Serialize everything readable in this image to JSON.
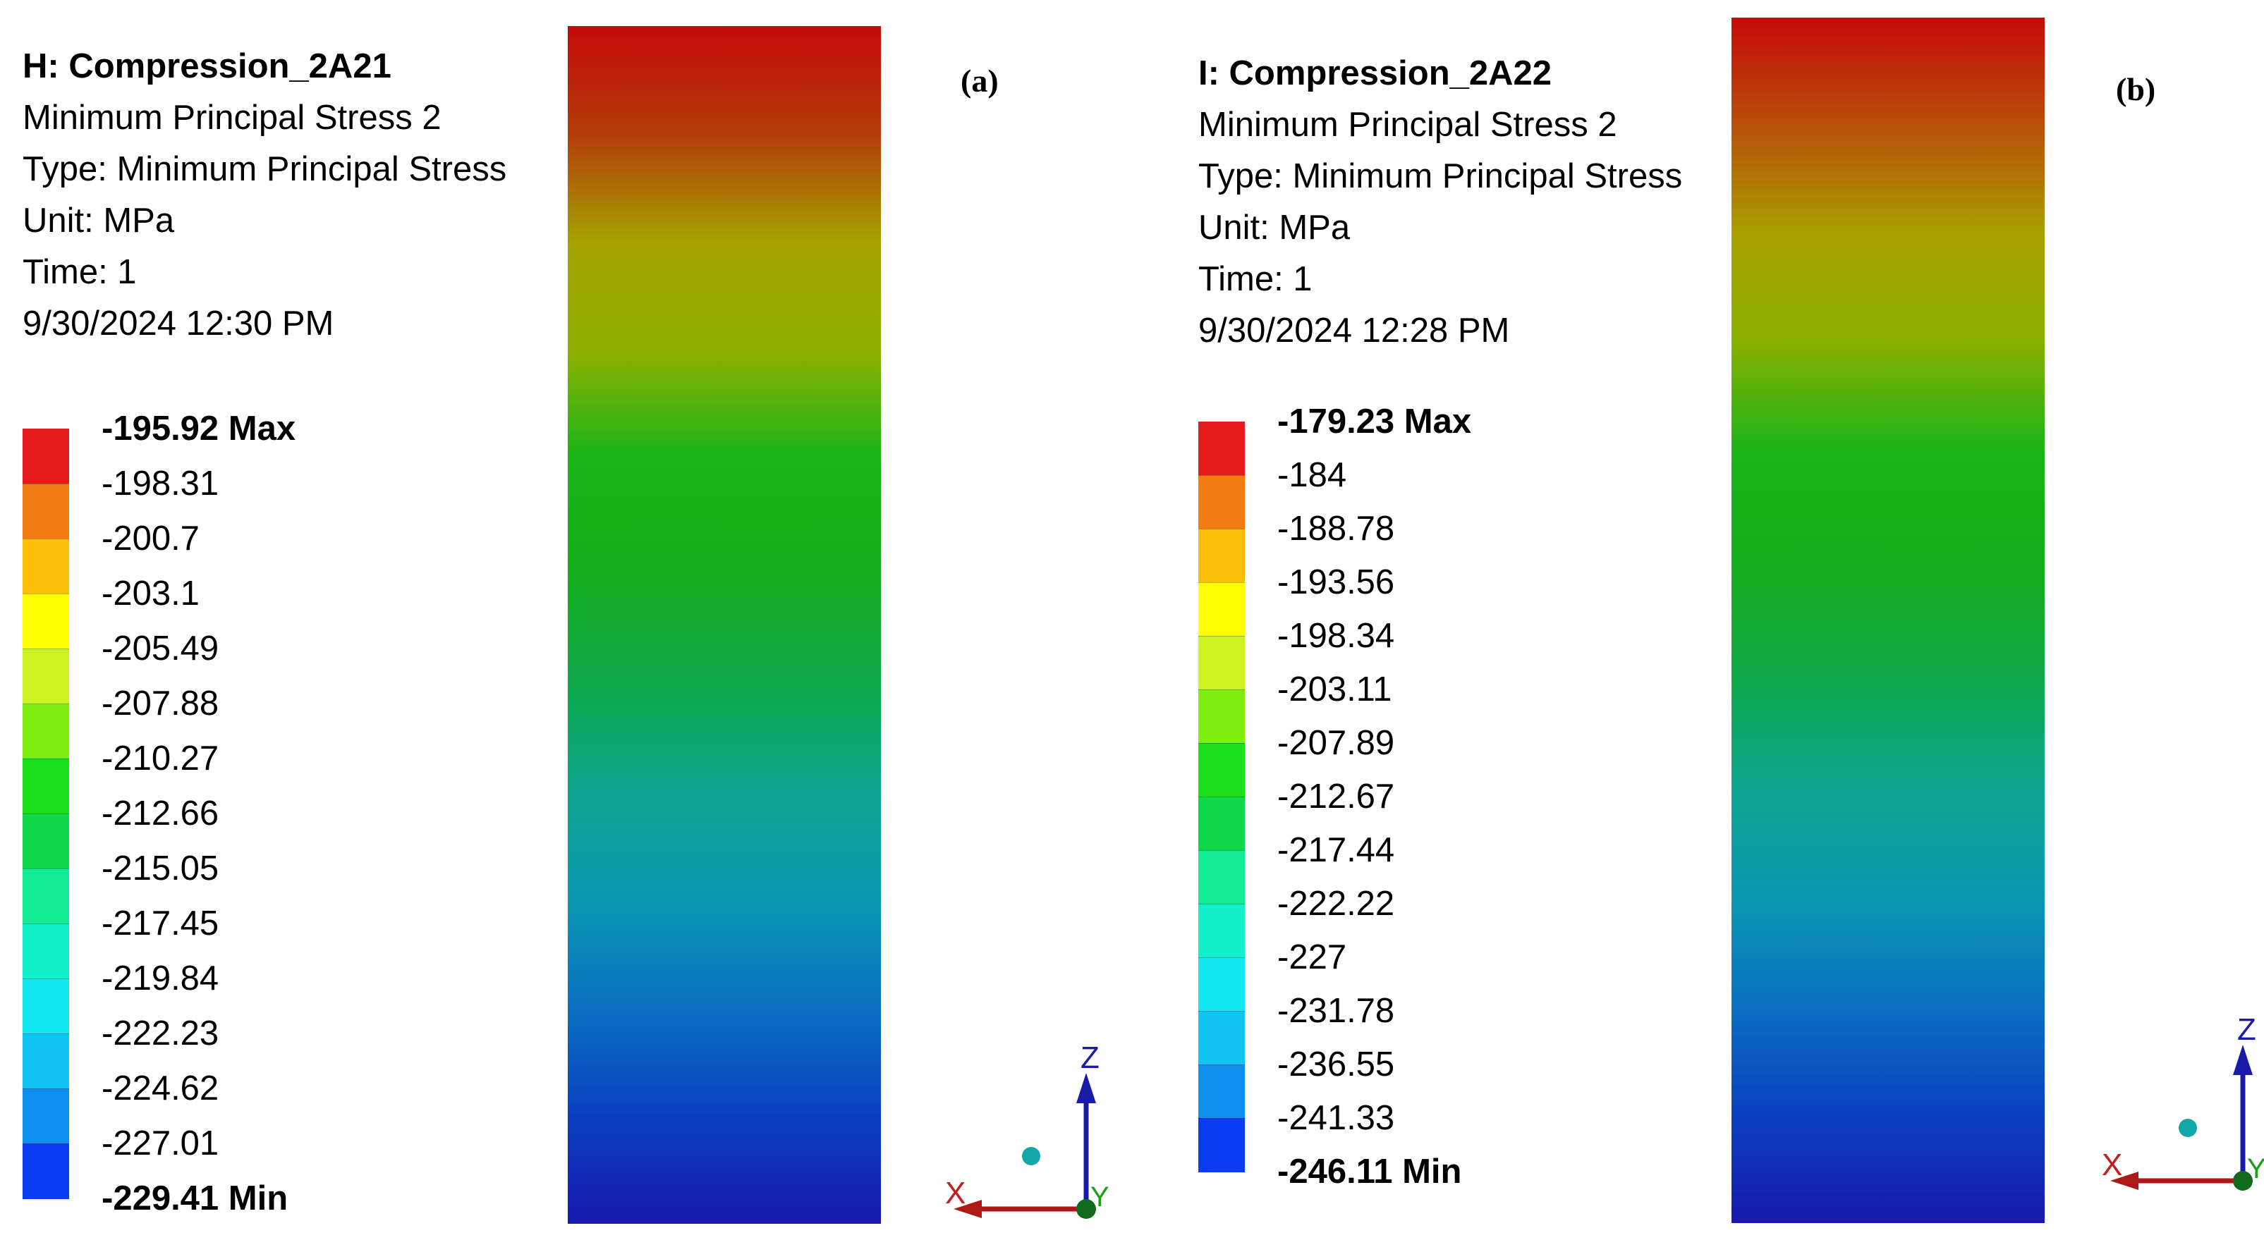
{
  "panels": [
    {
      "label": "(a)",
      "title": "H: Compression_2A21",
      "result": "Minimum Principal Stress 2",
      "type": "Type: Minimum Principal Stress",
      "unit": "Unit: MPa",
      "time": "Time: 1",
      "date": "9/30/2024 12:30 PM",
      "max_label": "-195.92 Max",
      "min_label": "-229.41 Min",
      "ticks": [
        "-198.31",
        "-200.7",
        "-203.1",
        "-205.49",
        "-207.88",
        "-210.27",
        "-212.66",
        "-215.05",
        "-217.45",
        "-219.84",
        "-222.23",
        "-224.62",
        "-227.01"
      ],
      "colors": [
        "#e41a1c",
        "#f47a14",
        "#fbbf0a",
        "#ffff00",
        "#ccf222",
        "#7dee10",
        "#1adf1a",
        "#10d84a",
        "#11ec94",
        "#11f0c8",
        "#12e6f0",
        "#11c4f2",
        "#0f90f0",
        "#0a3df2"
      ],
      "gradient": [
        "#c40a0a",
        "#b33c0a",
        "#a5a200",
        "#8fb000",
        "#19b418",
        "#14ae1a",
        "#0ea84a",
        "#0aa690",
        "#0998b0",
        "#0a70c0",
        "#0a40c0",
        "#1818b0"
      ]
    },
    {
      "label": "(b)",
      "title": "I: Compression_2A22",
      "result": "Minimum Principal Stress 2",
      "type": "Type: Minimum Principal Stress",
      "unit": "Unit: MPa",
      "time": "Time: 1",
      "date": "9/30/2024 12:28 PM",
      "max_label": "-179.23 Max",
      "min_label": "-246.11 Min",
      "ticks": [
        "-184",
        "-188.78",
        "-193.56",
        "-198.34",
        "-203.11",
        "-207.89",
        "-212.67",
        "-217.44",
        "-222.22",
        "-227",
        "-231.78",
        "-236.55",
        "-241.33"
      ],
      "colors": [
        "#e41a1c",
        "#f47a14",
        "#fbbf0a",
        "#ffff00",
        "#ccf222",
        "#7dee10",
        "#1adf1a",
        "#10d84a",
        "#11ec94",
        "#11f0c8",
        "#12e6f0",
        "#11c4f2",
        "#0f90f0",
        "#0a3df2"
      ],
      "gradient": [
        "#c40a0a",
        "#b8500a",
        "#a8a000",
        "#88b000",
        "#19b418",
        "#14ae1a",
        "#0ea84a",
        "#0aa690",
        "#0998b0",
        "#0a70c0",
        "#0a40c0",
        "#1818b0"
      ]
    }
  ],
  "triad": {
    "x_label": "X",
    "y_label": "Y",
    "z_label": "Z"
  }
}
